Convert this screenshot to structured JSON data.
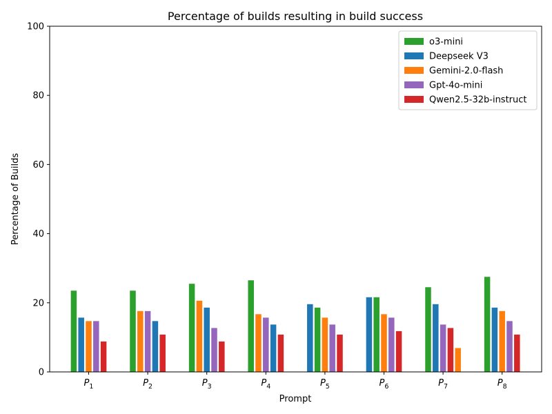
{
  "chart_data": {
    "type": "bar",
    "title": "Percentage of builds resulting in build success",
    "xlabel": "Prompt",
    "ylabel": "Percentage of Builds",
    "ylim": [
      0,
      100
    ],
    "yticks": [
      0,
      20,
      40,
      60,
      80,
      100
    ],
    "legend_position": "top-right",
    "grid": false,
    "categories": [
      {
        "base": "P",
        "sub": "1"
      },
      {
        "base": "P",
        "sub": "2"
      },
      {
        "base": "P",
        "sub": "3"
      },
      {
        "base": "P",
        "sub": "4"
      },
      {
        "base": "P",
        "sub": "5"
      },
      {
        "base": "P",
        "sub": "6"
      },
      {
        "base": "P",
        "sub": "7"
      },
      {
        "base": "P",
        "sub": "8"
      }
    ],
    "series": [
      {
        "name": "o3-mini",
        "color": "#2ca02c"
      },
      {
        "name": "Deepseek V3",
        "color": "#1f77b4"
      },
      {
        "name": "Gemini-2.0-flash",
        "color": "#ff7f0e"
      },
      {
        "name": "Gpt-4o-mini",
        "color": "#9467bd"
      },
      {
        "name": "Qwen2.5-32b-instruct",
        "color": "#d62728"
      }
    ],
    "groups": [
      [
        {
          "series": "o3-mini",
          "value": 23.5
        },
        {
          "series": "Deepseek V3",
          "value": 15.7
        },
        {
          "series": "Gemini-2.0-flash",
          "value": 14.7
        },
        {
          "series": "Gpt-4o-mini",
          "value": 14.7
        },
        {
          "series": "Qwen2.5-32b-instruct",
          "value": 8.8
        }
      ],
      [
        {
          "series": "o3-mini",
          "value": 23.5
        },
        {
          "series": "Gemini-2.0-flash",
          "value": 17.6
        },
        {
          "series": "Gpt-4o-mini",
          "value": 17.6
        },
        {
          "series": "Deepseek V3",
          "value": 14.7
        },
        {
          "series": "Qwen2.5-32b-instruct",
          "value": 10.8
        }
      ],
      [
        {
          "series": "o3-mini",
          "value": 25.5
        },
        {
          "series": "Gemini-2.0-flash",
          "value": 20.6
        },
        {
          "series": "Deepseek V3",
          "value": 18.6
        },
        {
          "series": "Gpt-4o-mini",
          "value": 12.7
        },
        {
          "series": "Qwen2.5-32b-instruct",
          "value": 8.8
        }
      ],
      [
        {
          "series": "o3-mini",
          "value": 26.5
        },
        {
          "series": "Gemini-2.0-flash",
          "value": 16.7
        },
        {
          "series": "Gpt-4o-mini",
          "value": 15.7
        },
        {
          "series": "Deepseek V3",
          "value": 13.7
        },
        {
          "series": "Qwen2.5-32b-instruct",
          "value": 10.8
        }
      ],
      [
        {
          "series": "Deepseek V3",
          "value": 19.6
        },
        {
          "series": "o3-mini",
          "value": 18.6
        },
        {
          "series": "Gemini-2.0-flash",
          "value": 15.7
        },
        {
          "series": "Gpt-4o-mini",
          "value": 13.7
        },
        {
          "series": "Qwen2.5-32b-instruct",
          "value": 10.8
        }
      ],
      [
        {
          "series": "Deepseek V3",
          "value": 21.6
        },
        {
          "series": "o3-mini",
          "value": 21.6
        },
        {
          "series": "Gemini-2.0-flash",
          "value": 16.7
        },
        {
          "series": "Gpt-4o-mini",
          "value": 15.7
        },
        {
          "series": "Qwen2.5-32b-instruct",
          "value": 11.8
        }
      ],
      [
        {
          "series": "o3-mini",
          "value": 24.5
        },
        {
          "series": "Deepseek V3",
          "value": 19.6
        },
        {
          "series": "Gpt-4o-mini",
          "value": 13.7
        },
        {
          "series": "Qwen2.5-32b-instruct",
          "value": 12.7
        },
        {
          "series": "Gemini-2.0-flash",
          "value": 6.9
        }
      ],
      [
        {
          "series": "o3-mini",
          "value": 27.5
        },
        {
          "series": "Deepseek V3",
          "value": 18.6
        },
        {
          "series": "Gemini-2.0-flash",
          "value": 17.6
        },
        {
          "series": "Gpt-4o-mini",
          "value": 14.7
        },
        {
          "series": "Qwen2.5-32b-instruct",
          "value": 10.8
        }
      ]
    ]
  }
}
